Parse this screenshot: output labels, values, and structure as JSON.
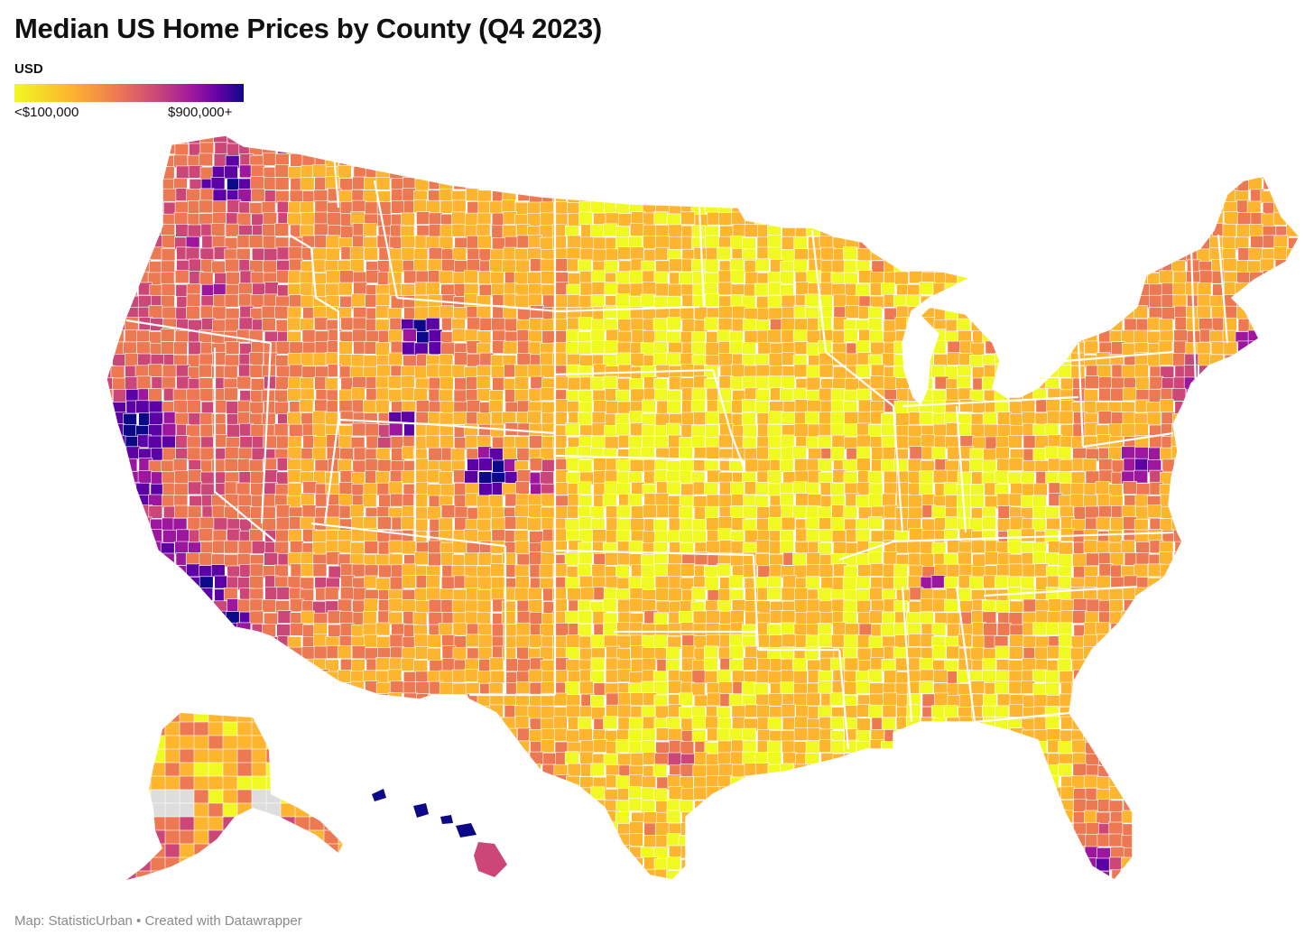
{
  "title": "Median US Home Prices by County (Q4 2023)",
  "legend": {
    "title": "USD",
    "min_label": "<$100,000",
    "max_label": "$900,000+",
    "colors": [
      "#f0f921",
      "#fdb42f",
      "#ed7953",
      "#cc4778",
      "#9c179e",
      "#5c01a6",
      "#0d0887"
    ]
  },
  "footer": "Map: StatisticUrban • Created with Datawrapper",
  "map": {
    "type": "choropleth",
    "geography": "US counties",
    "no_data_color": "#dddddd",
    "border_color": "#ffffff"
  }
}
